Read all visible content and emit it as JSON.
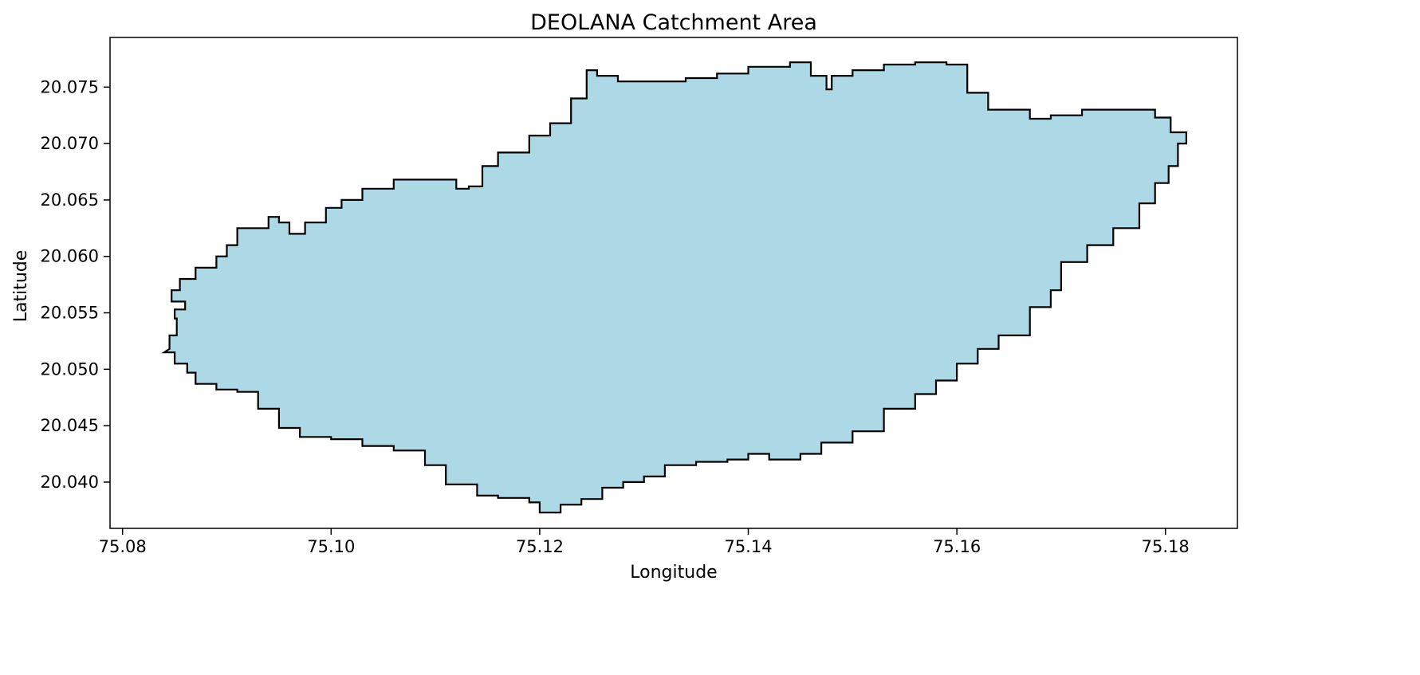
{
  "chart_data": {
    "type": "map",
    "title": "DEOLANA Catchment Area",
    "xlabel": "Longitude",
    "ylabel": "Latitude",
    "xlim": [
      75.0788,
      75.1869
    ],
    "ylim": [
      20.0359,
      20.0794
    ],
    "x_ticks": [
      {
        "value": 75.08,
        "label": "75.08"
      },
      {
        "value": 75.1,
        "label": "75.10"
      },
      {
        "value": 75.12,
        "label": "75.12"
      },
      {
        "value": 75.14,
        "label": "75.14"
      },
      {
        "value": 75.16,
        "label": "75.16"
      },
      {
        "value": 75.18,
        "label": "75.18"
      }
    ],
    "y_ticks": [
      {
        "value": 20.04,
        "label": "20.040"
      },
      {
        "value": 20.045,
        "label": "20.045"
      },
      {
        "value": 20.05,
        "label": "20.050"
      },
      {
        "value": 20.055,
        "label": "20.055"
      },
      {
        "value": 20.06,
        "label": "20.060"
      },
      {
        "value": 20.065,
        "label": "20.065"
      },
      {
        "value": 20.07,
        "label": "20.070"
      },
      {
        "value": 20.075,
        "label": "20.075"
      }
    ],
    "grid": false,
    "fill_color": "#add8e6",
    "edge_color": "#000000",
    "boundary": [
      [
        75.0845,
        20.0518
      ],
      [
        75.0852,
        20.053
      ],
      [
        75.085,
        20.0545
      ],
      [
        75.086,
        20.0553
      ],
      [
        75.0847,
        20.056
      ],
      [
        75.0855,
        20.057
      ],
      [
        75.087,
        20.058
      ],
      [
        75.089,
        20.059
      ],
      [
        75.09,
        20.06
      ],
      [
        75.091,
        20.061
      ],
      [
        75.094,
        20.0625
      ],
      [
        75.095,
        20.0635
      ],
      [
        75.096,
        20.063
      ],
      [
        75.0975,
        20.062
      ],
      [
        75.0995,
        20.063
      ],
      [
        75.101,
        20.0643
      ],
      [
        75.103,
        20.065
      ],
      [
        75.106,
        20.066
      ],
      [
        75.109,
        20.0668
      ],
      [
        75.112,
        20.0668
      ],
      [
        75.1132,
        20.066
      ],
      [
        75.1145,
        20.0662
      ],
      [
        75.116,
        20.068
      ],
      [
        75.119,
        20.0692
      ],
      [
        75.121,
        20.0707
      ],
      [
        75.123,
        20.0718
      ],
      [
        75.1245,
        20.074
      ],
      [
        75.1255,
        20.0765
      ],
      [
        75.1275,
        20.076
      ],
      [
        75.13,
        20.0755
      ],
      [
        75.134,
        20.0755
      ],
      [
        75.137,
        20.0758
      ],
      [
        75.14,
        20.0762
      ],
      [
        75.144,
        20.0768
      ],
      [
        75.146,
        20.0772
      ],
      [
        75.1475,
        20.076
      ],
      [
        75.148,
        20.0748
      ],
      [
        75.15,
        20.076
      ],
      [
        75.153,
        20.0765
      ],
      [
        75.156,
        20.077
      ],
      [
        75.159,
        20.0772
      ],
      [
        75.161,
        20.077
      ],
      [
        75.163,
        20.0745
      ],
      [
        75.167,
        20.073
      ],
      [
        75.169,
        20.0722
      ],
      [
        75.172,
        20.0725
      ],
      [
        75.175,
        20.073
      ],
      [
        75.179,
        20.073
      ],
      [
        75.1805,
        20.0723
      ],
      [
        75.182,
        20.071
      ],
      [
        75.1812,
        20.07
      ],
      [
        75.1803,
        20.068
      ],
      [
        75.179,
        20.0665
      ],
      [
        75.1775,
        20.0647
      ],
      [
        75.175,
        20.0625
      ],
      [
        75.1725,
        20.061
      ],
      [
        75.17,
        20.0595
      ],
      [
        75.169,
        20.057
      ],
      [
        75.167,
        20.0555
      ],
      [
        75.164,
        20.053
      ],
      [
        75.162,
        20.0518
      ],
      [
        75.16,
        20.0505
      ],
      [
        75.158,
        20.049
      ],
      [
        75.156,
        20.0478
      ],
      [
        75.153,
        20.0465
      ],
      [
        75.15,
        20.0445
      ],
      [
        75.147,
        20.0435
      ],
      [
        75.145,
        20.0425
      ],
      [
        75.142,
        20.042
      ],
      [
        75.14,
        20.0425
      ],
      [
        75.138,
        20.042
      ],
      [
        75.135,
        20.0418
      ],
      [
        75.132,
        20.0415
      ],
      [
        75.13,
        20.0405
      ],
      [
        75.128,
        20.04
      ],
      [
        75.126,
        20.0395
      ],
      [
        75.124,
        20.0385
      ],
      [
        75.122,
        20.038
      ],
      [
        75.12,
        20.0373
      ],
      [
        75.119,
        20.0382
      ],
      [
        75.116,
        20.0386
      ],
      [
        75.114,
        20.0388
      ],
      [
        75.111,
        20.0398
      ],
      [
        75.109,
        20.0415
      ],
      [
        75.106,
        20.0428
      ],
      [
        75.103,
        20.0432
      ],
      [
        75.1,
        20.0438
      ],
      [
        75.097,
        20.044
      ],
      [
        75.095,
        20.0448
      ],
      [
        75.093,
        20.0465
      ],
      [
        75.091,
        20.048
      ],
      [
        75.089,
        20.0482
      ],
      [
        75.087,
        20.0487
      ],
      [
        75.0862,
        20.0497
      ],
      [
        75.085,
        20.0505
      ],
      [
        75.084,
        20.0515
      ]
    ]
  }
}
